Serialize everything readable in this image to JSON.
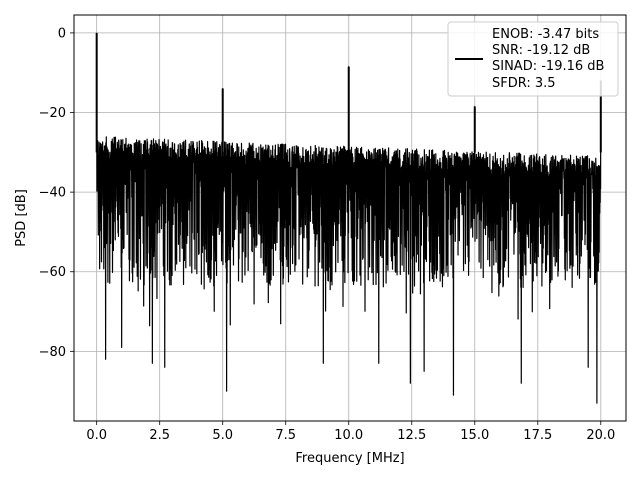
{
  "chart_data": {
    "type": "line",
    "title": "",
    "xlabel": "Frequency [MHz]",
    "ylabel": "PSD [dB]",
    "xlim": [
      -0.9,
      21.0
    ],
    "ylim": [
      -97.5,
      4.5
    ],
    "x_ticks": [
      0.0,
      2.5,
      5.0,
      7.5,
      10.0,
      12.5,
      15.0,
      17.5,
      20.0
    ],
    "x_tick_labels": [
      "0.0",
      "2.5",
      "5.0",
      "7.5",
      "10.0",
      "12.5",
      "15.0",
      "17.5",
      "20.0"
    ],
    "y_ticks": [
      0,
      -20,
      -40,
      -60,
      -80
    ],
    "y_tick_labels": [
      "0",
      "−20",
      "−40",
      "−60",
      "−80"
    ],
    "grid": true,
    "line_color": "#000000",
    "legend_location": "upper right",
    "legend_lines": [
      "ENOB: -3.47 bits",
      "SNR: -19.12 dB",
      "SINAD: -19.16 dB",
      "SFDR: 3.5"
    ],
    "series": [
      {
        "x_range": [
          0.0,
          20.0
        ],
        "noise_envelope": {
          "upper_start_db": -26,
          "upper_end_db": -31,
          "lower_typical_db": -70,
          "lower_extremes": [
            {
              "x": 0.35,
              "y": -82
            },
            {
              "x": 1.0,
              "y": -79
            },
            {
              "x": 2.2,
              "y": -83
            },
            {
              "x": 2.7,
              "y": -84
            },
            {
              "x": 5.15,
              "y": -90
            },
            {
              "x": 9.0,
              "y": -83
            },
            {
              "x": 11.2,
              "y": -83
            },
            {
              "x": 12.45,
              "y": -88
            },
            {
              "x": 13.0,
              "y": -85
            },
            {
              "x": 14.15,
              "y": -91
            },
            {
              "x": 16.85,
              "y": -88
            },
            {
              "x": 19.5,
              "y": -84
            },
            {
              "x": 19.85,
              "y": -93
            }
          ]
        },
        "peaks": [
          {
            "x": 0.0,
            "y": 0
          },
          {
            "x": 5.0,
            "y": -14
          },
          {
            "x": 10.0,
            "y": -8.5
          },
          {
            "x": 15.0,
            "y": -18.5
          },
          {
            "x": 20.0,
            "y": -12
          }
        ]
      }
    ]
  }
}
